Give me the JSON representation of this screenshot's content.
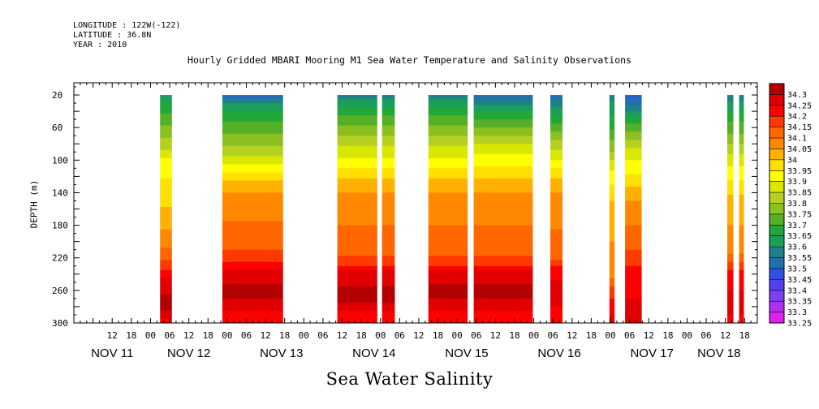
{
  "header": {
    "longitude": "LONGITUDE : 122W(-122)",
    "latitude": "LATITUDE : 36.8N",
    "year": "YEAR : 2010"
  },
  "chart_data": {
    "type": "heatmap",
    "title": "Hourly Gridded MBARI Mooring M1 Sea Water Temperature and Salinity Observations",
    "subtitle": "Sea Water Salinity",
    "ylabel": "DEPTH (m)",
    "xlabel": "",
    "ylim": [
      300,
      5
    ],
    "y_ticks": [
      20,
      60,
      100,
      140,
      180,
      220,
      260,
      300
    ],
    "x_range_hours": [
      0,
      214
    ],
    "x_ticks": [
      {
        "h": 12,
        "label": "12"
      },
      {
        "h": 18,
        "label": "18"
      },
      {
        "h": 24,
        "label": "00"
      },
      {
        "h": 30,
        "label": "06"
      },
      {
        "h": 36,
        "label": "12"
      },
      {
        "h": 42,
        "label": "18"
      },
      {
        "h": 48,
        "label": "00"
      },
      {
        "h": 54,
        "label": "06"
      },
      {
        "h": 60,
        "label": "12"
      },
      {
        "h": 66,
        "label": "18"
      },
      {
        "h": 72,
        "label": "00"
      },
      {
        "h": 78,
        "label": "06"
      },
      {
        "h": 84,
        "label": "12"
      },
      {
        "h": 90,
        "label": "18"
      },
      {
        "h": 96,
        "label": "00"
      },
      {
        "h": 102,
        "label": "06"
      },
      {
        "h": 108,
        "label": "12"
      },
      {
        "h": 114,
        "label": "18"
      },
      {
        "h": 120,
        "label": "00"
      },
      {
        "h": 126,
        "label": "06"
      },
      {
        "h": 132,
        "label": "12"
      },
      {
        "h": 138,
        "label": "18"
      },
      {
        "h": 144,
        "label": "00"
      },
      {
        "h": 150,
        "label": "06"
      },
      {
        "h": 156,
        "label": "12"
      },
      {
        "h": 162,
        "label": "18"
      },
      {
        "h": 168,
        "label": "00"
      },
      {
        "h": 174,
        "label": "06"
      },
      {
        "h": 180,
        "label": "12"
      },
      {
        "h": 186,
        "label": "18"
      },
      {
        "h": 192,
        "label": "00"
      },
      {
        "h": 198,
        "label": "06"
      },
      {
        "h": 204,
        "label": "12"
      },
      {
        "h": 210,
        "label": "18"
      }
    ],
    "day_labels": [
      {
        "h": 12,
        "label": "NOV 11"
      },
      {
        "h": 36,
        "label": "NOV 12"
      },
      {
        "h": 65,
        "label": "NOV 13"
      },
      {
        "h": 94,
        "label": "NOV 14"
      },
      {
        "h": 123,
        "label": "NOV 15"
      },
      {
        "h": 152,
        "label": "NOV 16"
      },
      {
        "h": 181,
        "label": "NOV 17"
      },
      {
        "h": 202,
        "label": "NOV 18"
      }
    ],
    "legend": {
      "placement": "right",
      "levels": [
        33.25,
        33.3,
        33.35,
        33.4,
        33.45,
        33.5,
        33.55,
        33.6,
        33.65,
        33.7,
        33.75,
        33.8,
        33.85,
        33.9,
        33.95,
        34,
        34.05,
        34.1,
        34.15,
        34.2,
        34.25,
        34.3
      ],
      "labels": [
        "33.25",
        "33.3",
        "33.35",
        "33.4",
        "33.45",
        "33.5",
        "33.55",
        "33.6",
        "33.65",
        "33.7",
        "33.75",
        "33.8",
        "33.85",
        "33.9",
        "33.95",
        "34",
        "34.05",
        "34.1",
        "34.15",
        "34.2",
        "34.25",
        "34.3"
      ],
      "colors": [
        "#e020f0",
        "#b030f0",
        "#8040f0",
        "#5040f0",
        "#3050e0",
        "#2070b0",
        "#20808a",
        "#1a9e5a",
        "#20a838",
        "#55b028",
        "#8cc020",
        "#b4d020",
        "#d8e800",
        "#ffff00",
        "#ffe000",
        "#ffb000",
        "#ff8800",
        "#ff6600",
        "#ff3a00",
        "#ff0000",
        "#e00000",
        "#b40000"
      ]
    },
    "segments": [
      {
        "start": 27.0,
        "end": 30.7,
        "top": 20,
        "bottom": 300,
        "profile": [
          [
            20,
            33.6
          ],
          [
            50,
            33.7
          ],
          [
            80,
            33.8
          ],
          [
            100,
            33.88
          ],
          [
            120,
            33.92
          ],
          [
            160,
            33.98
          ],
          [
            200,
            34.05
          ],
          [
            230,
            34.15
          ],
          [
            250,
            34.25
          ],
          [
            280,
            34.3
          ],
          [
            300,
            34.2
          ]
        ]
      },
      {
        "start": 46.5,
        "end": 65.5,
        "top": 20,
        "bottom": 300,
        "profile": [
          [
            20,
            33.5
          ],
          [
            35,
            33.6
          ],
          [
            60,
            33.7
          ],
          [
            95,
            33.82
          ],
          [
            110,
            33.9
          ],
          [
            130,
            34.0
          ],
          [
            150,
            34.05
          ],
          [
            200,
            34.1
          ],
          [
            220,
            34.15
          ],
          [
            240,
            34.25
          ],
          [
            265,
            34.3
          ],
          [
            290,
            34.2
          ],
          [
            300,
            34.2
          ]
        ]
      },
      {
        "start": 82.5,
        "end": 95.0,
        "top": 20,
        "bottom": 300,
        "profile": [
          [
            20,
            33.55
          ],
          [
            40,
            33.65
          ],
          [
            70,
            33.78
          ],
          [
            100,
            33.88
          ],
          [
            130,
            34.0
          ],
          [
            150,
            34.05
          ],
          [
            210,
            34.1
          ],
          [
            225,
            34.15
          ],
          [
            240,
            34.25
          ],
          [
            270,
            34.3
          ],
          [
            290,
            34.2
          ],
          [
            300,
            34.2
          ]
        ]
      },
      {
        "start": 96.5,
        "end": 100.5,
        "top": 20,
        "bottom": 300,
        "profile": [
          [
            20,
            33.55
          ],
          [
            40,
            33.65
          ],
          [
            70,
            33.78
          ],
          [
            100,
            33.88
          ],
          [
            130,
            34.0
          ],
          [
            150,
            34.05
          ],
          [
            210,
            34.1
          ],
          [
            225,
            34.15
          ],
          [
            240,
            34.25
          ],
          [
            270,
            34.3
          ],
          [
            290,
            34.2
          ],
          [
            300,
            34.2
          ]
        ]
      },
      {
        "start": 111.0,
        "end": 123.3,
        "top": 20,
        "bottom": 300,
        "profile": [
          [
            20,
            33.55
          ],
          [
            40,
            33.65
          ],
          [
            70,
            33.78
          ],
          [
            100,
            33.88
          ],
          [
            130,
            34.0
          ],
          [
            150,
            34.05
          ],
          [
            210,
            34.1
          ],
          [
            225,
            34.15
          ],
          [
            240,
            34.25
          ],
          [
            265,
            34.3
          ],
          [
            290,
            34.2
          ],
          [
            300,
            34.2
          ]
        ]
      },
      {
        "start": 125.2,
        "end": 143.7,
        "top": 20,
        "bottom": 300,
        "profile": [
          [
            20,
            33.5
          ],
          [
            40,
            33.62
          ],
          [
            70,
            33.78
          ],
          [
            100,
            33.9
          ],
          [
            130,
            34.0
          ],
          [
            150,
            34.05
          ],
          [
            210,
            34.1
          ],
          [
            225,
            34.15
          ],
          [
            240,
            34.25
          ],
          [
            265,
            34.3
          ],
          [
            290,
            34.2
          ],
          [
            300,
            34.2
          ]
        ]
      },
      {
        "start": 149.2,
        "end": 153.0,
        "top": 20,
        "bottom": 300,
        "profile": [
          [
            20,
            33.5
          ],
          [
            40,
            33.6
          ],
          [
            70,
            33.75
          ],
          [
            100,
            33.88
          ],
          [
            130,
            34.0
          ],
          [
            150,
            34.05
          ],
          [
            220,
            34.1
          ],
          [
            235,
            34.2
          ],
          [
            260,
            34.25
          ],
          [
            300,
            34.2
          ]
        ]
      },
      {
        "start": 167.7,
        "end": 169.3,
        "top": 20,
        "bottom": 300,
        "profile": [
          [
            20,
            33.55
          ],
          [
            70,
            33.7
          ],
          [
            120,
            33.9
          ],
          [
            160,
            34.0
          ],
          [
            240,
            34.05
          ],
          [
            260,
            34.15
          ],
          [
            280,
            34.2
          ],
          [
            300,
            34.25
          ]
        ]
      },
      {
        "start": 172.6,
        "end": 177.8,
        "top": 20,
        "bottom": 300,
        "profile": [
          [
            20,
            33.45
          ],
          [
            35,
            33.55
          ],
          [
            60,
            33.7
          ],
          [
            90,
            33.85
          ],
          [
            110,
            33.9
          ],
          [
            140,
            34.0
          ],
          [
            160,
            34.05
          ],
          [
            200,
            34.1
          ],
          [
            220,
            34.15
          ],
          [
            240,
            34.2
          ],
          [
            300,
            34.25
          ]
        ]
      },
      {
        "start": 204.6,
        "end": 206.5,
        "top": 20,
        "bottom": 300,
        "profile": [
          [
            20,
            33.55
          ],
          [
            60,
            33.7
          ],
          [
            100,
            33.85
          ],
          [
            150,
            34.0
          ],
          [
            210,
            34.05
          ],
          [
            240,
            34.2
          ],
          [
            280,
            34.25
          ],
          [
            300,
            34.2
          ]
        ]
      },
      {
        "start": 208.3,
        "end": 209.8,
        "top": 20,
        "bottom": 300,
        "profile": [
          [
            20,
            33.55
          ],
          [
            60,
            33.7
          ],
          [
            100,
            33.85
          ],
          [
            150,
            34.0
          ],
          [
            210,
            34.05
          ],
          [
            240,
            34.2
          ],
          [
            280,
            34.25
          ],
          [
            300,
            34.2
          ]
        ]
      }
    ]
  }
}
